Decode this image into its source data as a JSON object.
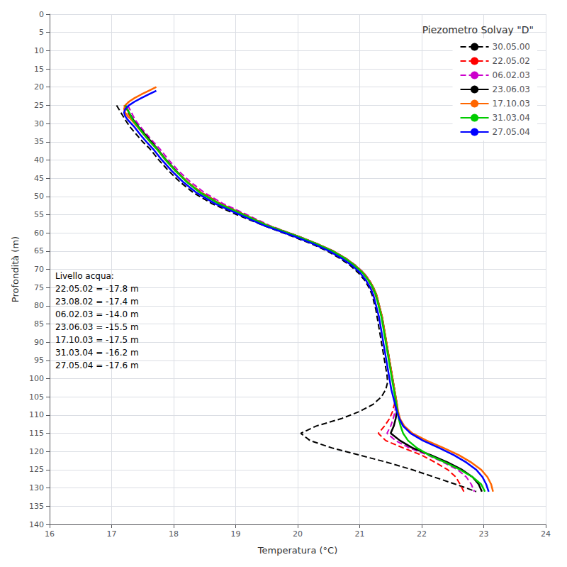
{
  "chart_data": {
    "type": "line",
    "title": "Piezometro Solvay \"D\"",
    "xlabel": "Temperatura (°C)",
    "ylabel": "Profondità (m)",
    "xlim": [
      16,
      24
    ],
    "ylim": [
      140,
      0
    ],
    "xticks": [
      16,
      17,
      18,
      19,
      20,
      21,
      22,
      23,
      24
    ],
    "yticks": [
      0,
      5,
      10,
      15,
      20,
      25,
      30,
      35,
      40,
      45,
      50,
      55,
      60,
      65,
      70,
      75,
      80,
      85,
      90,
      95,
      100,
      105,
      110,
      115,
      120,
      125,
      130,
      135,
      140
    ],
    "grid": true,
    "legend": "upper right",
    "annotations": [
      "Livello acqua:",
      "22.05.02 = -17.8 m",
      "23.08.02 = -17.4 m",
      "06.02.03 = -14.0 m",
      "23.06.03 = -15.5 m",
      "17.10.03 = -17.5 m",
      "31.03.04 = -16.2 m",
      "27.05.04 = -17.6 m"
    ],
    "series": [
      {
        "name": "30.05.00",
        "color": "#000000",
        "line_style": "dashed",
        "x": [
          17.08,
          17.15,
          17.22,
          17.3,
          17.4,
          17.5,
          17.62,
          17.76,
          17.92,
          18.1,
          18.32,
          18.62,
          19.02,
          19.45,
          19.92,
          20.22,
          20.48,
          20.68,
          20.85,
          20.98,
          21.08,
          21.15,
          21.2,
          21.23,
          21.26,
          21.28,
          21.3,
          21.32,
          21.34,
          21.36,
          21.38,
          21.4,
          21.42,
          21.44,
          21.45,
          21.42,
          21.35,
          21.22,
          21.0,
          20.7,
          20.3,
          20.05,
          20.2,
          20.55,
          21.0,
          21.45,
          21.85,
          22.2,
          22.55,
          22.88
        ],
        "y": [
          25,
          27,
          29,
          31,
          33,
          35,
          37,
          40,
          43,
          46,
          49,
          52,
          55,
          58,
          61,
          63,
          65,
          67,
          69,
          71,
          73,
          75,
          77,
          79,
          81,
          83,
          85,
          87,
          89,
          91,
          93,
          95,
          97,
          99,
          101,
          103,
          105,
          107,
          109,
          111,
          113,
          115,
          117,
          119,
          121,
          123,
          125,
          127,
          129,
          131
        ]
      },
      {
        "name": "22.05.02",
        "color": "#ff0000",
        "line_style": "dashed",
        "x": [
          17.2,
          17.26,
          17.33,
          17.42,
          17.52,
          17.62,
          17.73,
          17.87,
          18.03,
          18.22,
          18.46,
          18.76,
          19.14,
          19.52,
          20.0,
          20.3,
          20.56,
          20.76,
          20.92,
          21.05,
          21.14,
          21.2,
          21.25,
          21.29,
          21.32,
          21.35,
          21.38,
          21.4,
          21.42,
          21.44,
          21.46,
          21.48,
          21.5,
          21.52,
          21.54,
          21.56,
          21.57,
          21.56,
          21.53,
          21.48,
          21.4,
          21.3,
          21.42,
          21.7,
          22.0,
          22.22,
          22.42,
          22.55,
          22.62,
          22.68
        ],
        "y": [
          25,
          27,
          29,
          31,
          33,
          35,
          37,
          40,
          43,
          46,
          49,
          52,
          55,
          58,
          61,
          63,
          65,
          67,
          69,
          71,
          73,
          75,
          77,
          79,
          81,
          83,
          85,
          87,
          89,
          91,
          93,
          95,
          97,
          99,
          101,
          103,
          105,
          107,
          109,
          111,
          113,
          115,
          117,
          119,
          121,
          123,
          125,
          127,
          129,
          131
        ]
      },
      {
        "name": "06.02.03",
        "color": "#cc00cc",
        "line_style": "dashed",
        "x": [
          17.26,
          17.32,
          17.38,
          17.47,
          17.57,
          17.67,
          17.78,
          17.92,
          18.08,
          18.27,
          18.5,
          18.8,
          19.18,
          19.55,
          20.02,
          20.32,
          20.58,
          20.78,
          20.94,
          21.07,
          21.16,
          21.22,
          21.27,
          21.3,
          21.33,
          21.36,
          21.38,
          21.4,
          21.42,
          21.44,
          21.46,
          21.48,
          21.5,
          21.52,
          21.54,
          21.56,
          21.57,
          21.58,
          21.57,
          21.54,
          21.5,
          21.44,
          21.58,
          21.8,
          22.1,
          22.35,
          22.58,
          22.72,
          22.8,
          22.85
        ],
        "y": [
          25,
          27,
          29,
          31,
          33,
          35,
          37,
          40,
          43,
          46,
          49,
          52,
          55,
          58,
          61,
          63,
          65,
          67,
          69,
          71,
          73,
          75,
          77,
          79,
          81,
          83,
          85,
          87,
          89,
          91,
          93,
          95,
          97,
          99,
          101,
          103,
          105,
          107,
          109,
          111,
          113,
          115,
          117,
          119,
          121,
          123,
          125,
          127,
          129,
          131
        ]
      },
      {
        "name": "23.06.03",
        "color": "#000000",
        "line_style": "solid",
        "x": [
          17.22,
          17.28,
          17.35,
          17.44,
          17.54,
          17.64,
          17.74,
          17.88,
          18.04,
          18.22,
          18.44,
          18.74,
          19.13,
          19.52,
          20.01,
          20.31,
          20.57,
          20.77,
          20.93,
          21.06,
          21.15,
          21.22,
          21.27,
          21.3,
          21.33,
          21.36,
          21.38,
          21.4,
          21.42,
          21.44,
          21.46,
          21.48,
          21.5,
          21.52,
          21.54,
          21.56,
          21.58,
          21.6,
          21.6,
          21.58,
          21.55,
          21.5,
          21.65,
          21.85,
          22.15,
          22.42,
          22.65,
          22.82,
          22.92,
          22.97
        ],
        "y": [
          25,
          27,
          29,
          31,
          33,
          35,
          37,
          40,
          43,
          46,
          49,
          52,
          55,
          58,
          61,
          63,
          65,
          67,
          69,
          71,
          73,
          75,
          77,
          79,
          81,
          83,
          85,
          87,
          89,
          91,
          93,
          95,
          97,
          99,
          101,
          103,
          105,
          107,
          109,
          111,
          113,
          115,
          117,
          119,
          121,
          123,
          125,
          127,
          129,
          131
        ]
      },
      {
        "name": "17.10.03",
        "color": "#ff6600",
        "line_style": "solid",
        "x": [
          17.72,
          17.6,
          17.48,
          17.37,
          17.28,
          17.22,
          17.2,
          17.22,
          17.26,
          17.32,
          17.42,
          17.52,
          17.62,
          17.73,
          17.87,
          18.03,
          18.22,
          18.44,
          18.74,
          19.13,
          19.52,
          20.01,
          20.31,
          20.57,
          20.77,
          20.93,
          21.06,
          21.15,
          21.22,
          21.27,
          21.3,
          21.33,
          21.36,
          21.38,
          21.4,
          21.42,
          21.44,
          21.46,
          21.48,
          21.5,
          21.52,
          21.54,
          21.56,
          21.58,
          21.6,
          21.62,
          21.65,
          21.72,
          21.85,
          22.08,
          22.35,
          22.6,
          22.8,
          22.96,
          23.06,
          23.12,
          23.15
        ],
        "y": [
          20,
          21,
          22,
          23,
          24,
          25,
          26,
          27,
          28,
          29,
          31,
          33,
          35,
          37,
          40,
          43,
          46,
          49,
          52,
          55,
          58,
          61,
          63,
          65,
          67,
          69,
          71,
          73,
          75,
          77,
          79,
          81,
          83,
          85,
          87,
          89,
          91,
          93,
          95,
          97,
          99,
          101,
          103,
          105,
          107,
          109,
          111,
          113,
          115,
          117,
          119,
          121,
          123,
          125,
          127,
          129,
          131
        ]
      },
      {
        "name": "31.03.04",
        "color": "#00cc00",
        "line_style": "solid",
        "x": [
          17.22,
          17.28,
          17.34,
          17.43,
          17.52,
          17.62,
          17.73,
          17.87,
          18.03,
          18.21,
          18.43,
          18.73,
          19.12,
          19.51,
          20.0,
          20.3,
          20.56,
          20.76,
          20.92,
          21.05,
          21.14,
          21.21,
          21.26,
          21.29,
          21.32,
          21.35,
          21.37,
          21.39,
          21.41,
          21.43,
          21.45,
          21.47,
          21.49,
          21.51,
          21.53,
          21.55,
          21.57,
          21.59,
          21.61,
          21.63,
          21.66,
          21.7,
          21.78,
          21.92,
          22.12,
          22.38,
          22.62,
          22.82,
          22.96,
          23.02
        ],
        "y": [
          25,
          27,
          29,
          31,
          33,
          35,
          37,
          40,
          43,
          46,
          49,
          52,
          55,
          58,
          61,
          63,
          65,
          67,
          69,
          71,
          73,
          75,
          77,
          79,
          81,
          83,
          85,
          87,
          89,
          91,
          93,
          95,
          97,
          99,
          101,
          103,
          105,
          107,
          109,
          111,
          113,
          115,
          117,
          119,
          121,
          123,
          125,
          127,
          129,
          131
        ]
      },
      {
        "name": "27.05.04",
        "color": "#0000ff",
        "line_style": "solid",
        "x": [
          17.72,
          17.6,
          17.48,
          17.37,
          17.28,
          17.22,
          17.2,
          17.22,
          17.26,
          17.37,
          17.46,
          17.56,
          17.67,
          17.81,
          17.97,
          18.15,
          18.37,
          18.67,
          19.06,
          19.46,
          19.95,
          20.25,
          20.51,
          20.71,
          20.88,
          21.01,
          21.1,
          21.17,
          21.22,
          21.25,
          21.28,
          21.31,
          21.33,
          21.35,
          21.37,
          21.39,
          21.41,
          21.43,
          21.45,
          21.47,
          21.49,
          21.51,
          21.54,
          21.57,
          21.6,
          21.64,
          21.7,
          21.82,
          22.02,
          22.28,
          22.52,
          22.72,
          22.88,
          22.98,
          23.04,
          23.08
        ],
        "y": [
          21,
          22,
          23,
          24,
          25,
          26,
          27,
          28,
          29,
          31,
          33,
          35,
          37,
          40,
          43,
          46,
          49,
          52,
          55,
          58,
          61,
          63,
          65,
          67,
          69,
          71,
          73,
          75,
          77,
          79,
          81,
          83,
          85,
          87,
          89,
          91,
          93,
          95,
          97,
          99,
          101,
          103,
          105,
          107,
          109,
          111,
          113,
          115,
          117,
          119,
          121,
          123,
          125,
          127,
          129,
          131
        ]
      }
    ]
  }
}
